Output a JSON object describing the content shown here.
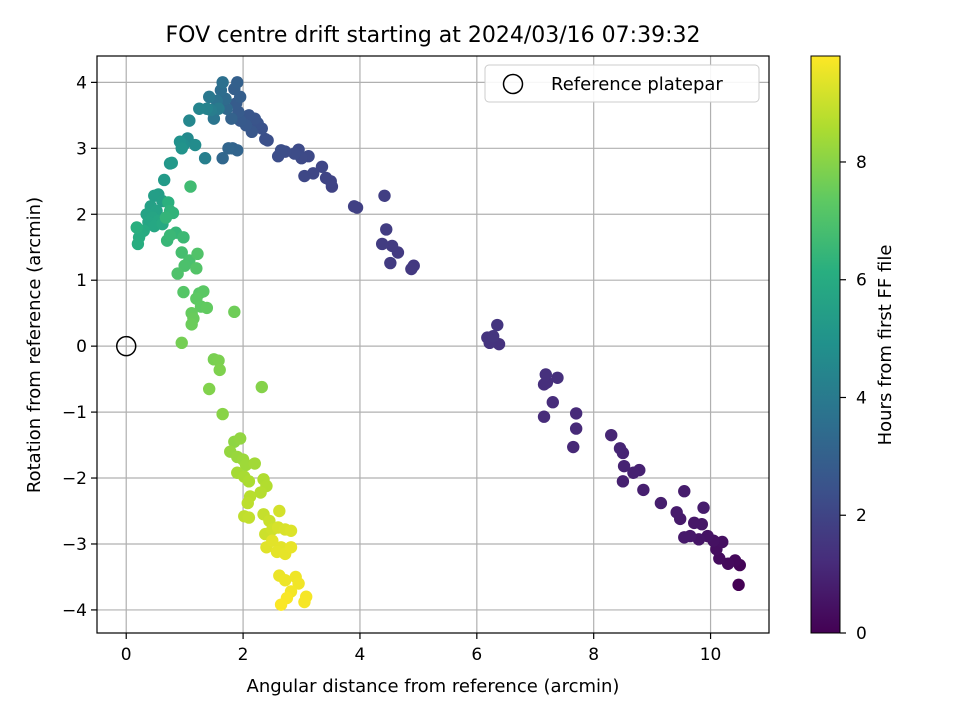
{
  "chart_data": {
    "type": "scatter",
    "title": "FOV centre drift starting at 2024/03/16 07:39:32",
    "xlabel": "Angular distance from reference (arcmin)",
    "ylabel": "Rotation from reference (arcmin)",
    "xlim": [
      -0.5,
      11.0
    ],
    "ylim": [
      -4.35,
      4.4
    ],
    "xticks": [
      0,
      2,
      4,
      6,
      8,
      10
    ],
    "yticks": [
      -4,
      -3,
      -2,
      -1,
      0,
      1,
      2,
      3,
      4
    ],
    "grid": true,
    "legend": {
      "placement": "top-right",
      "entries": [
        "Reference platepar"
      ]
    },
    "reference_point": {
      "x": 0,
      "y": 0,
      "label": "Reference platepar"
    },
    "colorbar": {
      "label": "Hours from first FF file",
      "colormap": "viridis",
      "range": [
        0,
        9.8
      ],
      "ticks": [
        0,
        2,
        4,
        6,
        8
      ]
    },
    "points": [
      {
        "x": 10.48,
        "y": -3.62,
        "h": 0.0
      },
      {
        "x": 10.5,
        "y": -3.32,
        "h": 0.1
      },
      {
        "x": 10.42,
        "y": -3.25,
        "h": 0.2
      },
      {
        "x": 10.3,
        "y": -3.3,
        "h": 0.25
      },
      {
        "x": 10.15,
        "y": -3.22,
        "h": 0.3
      },
      {
        "x": 10.1,
        "y": -3.08,
        "h": 0.35
      },
      {
        "x": 10.2,
        "y": -2.97,
        "h": 0.4
      },
      {
        "x": 10.05,
        "y": -2.95,
        "h": 0.45
      },
      {
        "x": 9.95,
        "y": -2.88,
        "h": 0.5
      },
      {
        "x": 9.8,
        "y": -2.93,
        "h": 0.55
      },
      {
        "x": 9.85,
        "y": -2.7,
        "h": 0.6
      },
      {
        "x": 9.72,
        "y": -2.68,
        "h": 0.62
      },
      {
        "x": 9.65,
        "y": -2.88,
        "h": 0.65
      },
      {
        "x": 9.55,
        "y": -2.9,
        "h": 0.68
      },
      {
        "x": 9.48,
        "y": -2.62,
        "h": 0.7
      },
      {
        "x": 9.42,
        "y": -2.52,
        "h": 0.72
      },
      {
        "x": 9.88,
        "y": -2.45,
        "h": 0.74
      },
      {
        "x": 9.55,
        "y": -2.2,
        "h": 0.76
      },
      {
        "x": 9.15,
        "y": -2.38,
        "h": 0.8
      },
      {
        "x": 8.85,
        "y": -2.18,
        "h": 0.84
      },
      {
        "x": 8.5,
        "y": -2.05,
        "h": 0.88
      },
      {
        "x": 8.78,
        "y": -1.88,
        "h": 0.9
      },
      {
        "x": 8.68,
        "y": -1.92,
        "h": 0.92
      },
      {
        "x": 8.52,
        "y": -1.82,
        "h": 0.95
      },
      {
        "x": 8.5,
        "y": -1.62,
        "h": 0.98
      },
      {
        "x": 8.45,
        "y": -1.55,
        "h": 1.0
      },
      {
        "x": 8.3,
        "y": -1.35,
        "h": 1.05
      },
      {
        "x": 7.65,
        "y": -1.53,
        "h": 1.1
      },
      {
        "x": 7.7,
        "y": -1.25,
        "h": 1.14
      },
      {
        "x": 7.7,
        "y": -1.02,
        "h": 1.17
      },
      {
        "x": 7.15,
        "y": -1.07,
        "h": 1.2
      },
      {
        "x": 7.3,
        "y": -0.85,
        "h": 1.24
      },
      {
        "x": 7.15,
        "y": -0.58,
        "h": 1.28
      },
      {
        "x": 7.2,
        "y": -0.55,
        "h": 1.3
      },
      {
        "x": 7.38,
        "y": -0.48,
        "h": 1.33
      },
      {
        "x": 7.18,
        "y": -0.43,
        "h": 1.36
      },
      {
        "x": 6.38,
        "y": 0.03,
        "h": 1.4
      },
      {
        "x": 6.22,
        "y": 0.05,
        "h": 1.42
      },
      {
        "x": 6.18,
        "y": 0.13,
        "h": 1.45
      },
      {
        "x": 6.28,
        "y": 0.15,
        "h": 1.48
      },
      {
        "x": 6.35,
        "y": 0.32,
        "h": 1.5
      },
      {
        "x": 4.92,
        "y": 1.22,
        "h": 1.6
      },
      {
        "x": 4.88,
        "y": 1.17,
        "h": 1.62
      },
      {
        "x": 4.65,
        "y": 1.42,
        "h": 1.65
      },
      {
        "x": 4.55,
        "y": 1.52,
        "h": 1.68
      },
      {
        "x": 4.52,
        "y": 1.26,
        "h": 1.7
      },
      {
        "x": 4.38,
        "y": 1.55,
        "h": 1.72
      },
      {
        "x": 4.45,
        "y": 1.77,
        "h": 1.75
      },
      {
        "x": 4.42,
        "y": 2.28,
        "h": 1.8
      },
      {
        "x": 3.95,
        "y": 2.1,
        "h": 1.85
      },
      {
        "x": 3.9,
        "y": 2.12,
        "h": 1.88
      },
      {
        "x": 3.52,
        "y": 2.42,
        "h": 1.95
      },
      {
        "x": 3.5,
        "y": 2.5,
        "h": 1.98
      },
      {
        "x": 3.42,
        "y": 2.55,
        "h": 2.0
      },
      {
        "x": 3.35,
        "y": 2.72,
        "h": 2.05
      },
      {
        "x": 3.2,
        "y": 2.62,
        "h": 2.08
      },
      {
        "x": 3.05,
        "y": 2.58,
        "h": 2.1
      },
      {
        "x": 3.12,
        "y": 2.88,
        "h": 2.15
      },
      {
        "x": 3.0,
        "y": 2.85,
        "h": 2.18
      },
      {
        "x": 2.95,
        "y": 2.98,
        "h": 2.2
      },
      {
        "x": 2.88,
        "y": 2.92,
        "h": 2.24
      },
      {
        "x": 2.72,
        "y": 2.95,
        "h": 2.28
      },
      {
        "x": 2.6,
        "y": 2.88,
        "h": 2.3
      },
      {
        "x": 2.65,
        "y": 2.97,
        "h": 2.33
      },
      {
        "x": 2.42,
        "y": 3.12,
        "h": 2.36
      },
      {
        "x": 2.38,
        "y": 3.14,
        "h": 2.4
      },
      {
        "x": 2.32,
        "y": 3.3,
        "h": 2.45
      },
      {
        "x": 2.25,
        "y": 3.38,
        "h": 2.5
      },
      {
        "x": 2.2,
        "y": 3.45,
        "h": 2.55
      },
      {
        "x": 2.1,
        "y": 3.5,
        "h": 2.6
      },
      {
        "x": 2.15,
        "y": 3.25,
        "h": 2.65
      },
      {
        "x": 2.05,
        "y": 3.35,
        "h": 2.7
      },
      {
        "x": 1.95,
        "y": 3.42,
        "h": 2.75
      },
      {
        "x": 1.92,
        "y": 3.55,
        "h": 2.8
      },
      {
        "x": 1.88,
        "y": 3.68,
        "h": 2.85
      },
      {
        "x": 1.95,
        "y": 3.78,
        "h": 2.9
      },
      {
        "x": 1.85,
        "y": 3.9,
        "h": 2.95
      },
      {
        "x": 1.9,
        "y": 4.0,
        "h": 3.0
      },
      {
        "x": 1.8,
        "y": 3.45,
        "h": 3.05
      },
      {
        "x": 1.82,
        "y": 3.0,
        "h": 3.1
      },
      {
        "x": 1.9,
        "y": 2.97,
        "h": 3.15
      },
      {
        "x": 1.75,
        "y": 3.0,
        "h": 3.2
      },
      {
        "x": 1.65,
        "y": 2.85,
        "h": 3.25
      },
      {
        "x": 1.72,
        "y": 3.6,
        "h": 3.3
      },
      {
        "x": 1.7,
        "y": 3.75,
        "h": 3.4
      },
      {
        "x": 1.62,
        "y": 3.88,
        "h": 3.5
      },
      {
        "x": 1.65,
        "y": 4.0,
        "h": 3.6
      },
      {
        "x": 1.55,
        "y": 3.72,
        "h": 3.7
      },
      {
        "x": 1.5,
        "y": 3.45,
        "h": 3.8
      },
      {
        "x": 1.42,
        "y": 3.78,
        "h": 3.9
      },
      {
        "x": 1.58,
        "y": 3.6,
        "h": 4.0
      },
      {
        "x": 1.45,
        "y": 3.58,
        "h": 4.1
      },
      {
        "x": 1.35,
        "y": 2.85,
        "h": 4.2
      },
      {
        "x": 1.38,
        "y": 3.6,
        "h": 4.3
      },
      {
        "x": 1.25,
        "y": 3.6,
        "h": 4.4
      },
      {
        "x": 1.08,
        "y": 3.42,
        "h": 4.5
      },
      {
        "x": 1.05,
        "y": 3.15,
        "h": 4.6
      },
      {
        "x": 1.18,
        "y": 3.05,
        "h": 4.7
      },
      {
        "x": 0.98,
        "y": 3.05,
        "h": 4.8
      },
      {
        "x": 0.92,
        "y": 3.1,
        "h": 4.9
      },
      {
        "x": 0.95,
        "y": 3.0,
        "h": 5.0
      },
      {
        "x": 0.75,
        "y": 2.77,
        "h": 5.1
      },
      {
        "x": 0.78,
        "y": 2.78,
        "h": 5.2
      },
      {
        "x": 0.65,
        "y": 2.52,
        "h": 5.3
      },
      {
        "x": 0.55,
        "y": 2.3,
        "h": 5.4
      },
      {
        "x": 0.48,
        "y": 2.28,
        "h": 5.45
      },
      {
        "x": 0.62,
        "y": 2.2,
        "h": 5.5
      },
      {
        "x": 0.42,
        "y": 2.12,
        "h": 5.55
      },
      {
        "x": 0.52,
        "y": 2.05,
        "h": 5.6
      },
      {
        "x": 0.35,
        "y": 2.0,
        "h": 5.65
      },
      {
        "x": 0.45,
        "y": 1.95,
        "h": 5.7
      },
      {
        "x": 0.38,
        "y": 1.88,
        "h": 5.75
      },
      {
        "x": 0.55,
        "y": 1.9,
        "h": 5.8
      },
      {
        "x": 0.48,
        "y": 1.82,
        "h": 5.85
      },
      {
        "x": 0.62,
        "y": 1.85,
        "h": 5.9
      },
      {
        "x": 0.3,
        "y": 1.75,
        "h": 5.95
      },
      {
        "x": 0.25,
        "y": 1.72,
        "h": 6.0
      },
      {
        "x": 0.22,
        "y": 1.65,
        "h": 6.05
      },
      {
        "x": 0.2,
        "y": 1.55,
        "h": 6.1
      },
      {
        "x": 0.18,
        "y": 1.8,
        "h": 6.15
      },
      {
        "x": 0.72,
        "y": 2.18,
        "h": 6.2
      },
      {
        "x": 0.75,
        "y": 2.05,
        "h": 6.3
      },
      {
        "x": 0.8,
        "y": 2.02,
        "h": 6.35
      },
      {
        "x": 0.68,
        "y": 1.95,
        "h": 6.4
      },
      {
        "x": 0.85,
        "y": 1.72,
        "h": 6.45
      },
      {
        "x": 0.7,
        "y": 1.6,
        "h": 6.5
      },
      {
        "x": 0.75,
        "y": 1.68,
        "h": 6.55
      },
      {
        "x": 0.98,
        "y": 1.65,
        "h": 6.6
      },
      {
        "x": 1.1,
        "y": 2.42,
        "h": 6.7
      },
      {
        "x": 0.95,
        "y": 1.42,
        "h": 6.8
      },
      {
        "x": 1.08,
        "y": 1.3,
        "h": 6.9
      },
      {
        "x": 1.0,
        "y": 1.22,
        "h": 6.95
      },
      {
        "x": 0.88,
        "y": 1.1,
        "h": 7.0
      },
      {
        "x": 1.22,
        "y": 1.4,
        "h": 7.05
      },
      {
        "x": 1.2,
        "y": 1.18,
        "h": 7.1
      },
      {
        "x": 0.98,
        "y": 0.82,
        "h": 7.15
      },
      {
        "x": 1.25,
        "y": 0.8,
        "h": 7.2
      },
      {
        "x": 1.32,
        "y": 0.83,
        "h": 7.25
      },
      {
        "x": 1.2,
        "y": 0.72,
        "h": 7.3
      },
      {
        "x": 1.28,
        "y": 0.6,
        "h": 7.35
      },
      {
        "x": 1.38,
        "y": 0.58,
        "h": 7.4
      },
      {
        "x": 1.12,
        "y": 0.5,
        "h": 7.45
      },
      {
        "x": 1.15,
        "y": 0.42,
        "h": 7.5
      },
      {
        "x": 1.12,
        "y": 0.33,
        "h": 7.55
      },
      {
        "x": 1.85,
        "y": 0.52,
        "h": 7.6
      },
      {
        "x": 0.95,
        "y": 0.05,
        "h": 7.7
      },
      {
        "x": 1.5,
        "y": -0.2,
        "h": 7.75
      },
      {
        "x": 1.58,
        "y": -0.22,
        "h": 7.8
      },
      {
        "x": 1.6,
        "y": -0.36,
        "h": 7.85
      },
      {
        "x": 1.42,
        "y": -0.65,
        "h": 7.9
      },
      {
        "x": 2.32,
        "y": -0.62,
        "h": 7.95
      },
      {
        "x": 1.65,
        "y": -1.03,
        "h": 8.0
      },
      {
        "x": 1.85,
        "y": -1.45,
        "h": 8.1
      },
      {
        "x": 1.95,
        "y": -1.4,
        "h": 8.15
      },
      {
        "x": 1.78,
        "y": -1.6,
        "h": 8.2
      },
      {
        "x": 1.9,
        "y": -1.68,
        "h": 8.25
      },
      {
        "x": 2.0,
        "y": -1.72,
        "h": 8.3
      },
      {
        "x": 2.05,
        "y": -1.8,
        "h": 8.35
      },
      {
        "x": 2.2,
        "y": -1.78,
        "h": 8.4
      },
      {
        "x": 1.9,
        "y": -1.92,
        "h": 8.45
      },
      {
        "x": 2.02,
        "y": -1.98,
        "h": 8.5
      },
      {
        "x": 2.1,
        "y": -2.05,
        "h": 8.55
      },
      {
        "x": 2.35,
        "y": -2.02,
        "h": 8.6
      },
      {
        "x": 2.4,
        "y": -2.12,
        "h": 8.65
      },
      {
        "x": 2.3,
        "y": -2.22,
        "h": 8.7
      },
      {
        "x": 2.12,
        "y": -2.28,
        "h": 8.75
      },
      {
        "x": 2.08,
        "y": -2.38,
        "h": 8.8
      },
      {
        "x": 2.02,
        "y": -2.58,
        "h": 8.85
      },
      {
        "x": 2.1,
        "y": -2.6,
        "h": 8.9
      },
      {
        "x": 2.35,
        "y": -2.55,
        "h": 8.95
      },
      {
        "x": 2.45,
        "y": -2.65,
        "h": 9.0
      },
      {
        "x": 2.38,
        "y": -2.85,
        "h": 9.05
      },
      {
        "x": 2.5,
        "y": -2.78,
        "h": 9.1
      },
      {
        "x": 2.62,
        "y": -2.5,
        "h": 9.15
      },
      {
        "x": 2.6,
        "y": -2.75,
        "h": 9.2
      },
      {
        "x": 2.72,
        "y": -2.78,
        "h": 9.25
      },
      {
        "x": 2.82,
        "y": -2.8,
        "h": 9.3
      },
      {
        "x": 2.4,
        "y": -3.05,
        "h": 9.35
      },
      {
        "x": 2.5,
        "y": -2.95,
        "h": 9.38
      },
      {
        "x": 2.65,
        "y": -3.05,
        "h": 9.4
      },
      {
        "x": 2.58,
        "y": -3.12,
        "h": 9.42
      },
      {
        "x": 2.72,
        "y": -3.15,
        "h": 9.45
      },
      {
        "x": 2.82,
        "y": -3.05,
        "h": 9.48
      },
      {
        "x": 2.62,
        "y": -3.48,
        "h": 9.52
      },
      {
        "x": 2.72,
        "y": -3.55,
        "h": 9.55
      },
      {
        "x": 2.9,
        "y": -3.5,
        "h": 9.58
      },
      {
        "x": 2.95,
        "y": -3.6,
        "h": 9.62
      },
      {
        "x": 2.82,
        "y": -3.72,
        "h": 9.65
      },
      {
        "x": 3.08,
        "y": -3.8,
        "h": 9.68
      },
      {
        "x": 3.05,
        "y": -3.88,
        "h": 9.7
      },
      {
        "x": 2.75,
        "y": -3.82,
        "h": 9.72
      },
      {
        "x": 2.65,
        "y": -3.92,
        "h": 9.75
      }
    ]
  }
}
